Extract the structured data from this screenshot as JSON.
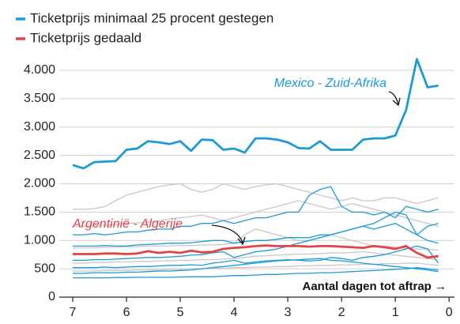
{
  "chart_data": {
    "type": "line",
    "legend": [
      {
        "label": "Ticketprijs minimaal 25 procent gestegen",
        "color": "#1a9ad6"
      },
      {
        "label": "Ticketprijs gedaald",
        "color": "#e0434b"
      }
    ],
    "annotations": [
      {
        "text": "Mexico - Zuid-Afrika",
        "color": "#1a9ad6"
      },
      {
        "text": "Argentinië - Algerije",
        "color": "#e0434b"
      },
      {
        "text": "Aantal dagen tot aftrap →",
        "color": "#111111"
      }
    ],
    "x": [
      7.0,
      6.8,
      6.6,
      6.4,
      6.2,
      6.0,
      5.8,
      5.6,
      5.4,
      5.2,
      5.0,
      4.8,
      4.6,
      4.4,
      4.2,
      4.0,
      3.8,
      3.6,
      3.4,
      3.2,
      3.0,
      2.8,
      2.6,
      2.4,
      2.2,
      2.0,
      1.8,
      1.6,
      1.4,
      1.2,
      1.0,
      0.8,
      0.6,
      0.4,
      0.2
    ],
    "xlim": [
      7.25,
      -0.1
    ],
    "xticks": [
      7,
      6,
      5,
      4,
      3,
      2,
      1,
      0
    ],
    "ylim": [
      0,
      4300
    ],
    "yticks": [
      0,
      500,
      {
        "value": 1000,
        "label": "1.000"
      },
      {
        "value": 1500,
        "label": "1.500"
      },
      {
        "value": 2000,
        "label": "2.000"
      },
      {
        "value": 2500,
        "label": "2.500"
      },
      {
        "value": 3000,
        "label": "3.000"
      },
      {
        "value": 3500,
        "label": "3.500"
      },
      {
        "value": 4000,
        "label": "4.000"
      }
    ],
    "grid": true,
    "series": [
      {
        "color": "#c8c8c8",
        "values": [
          1550,
          1550,
          1560,
          1600,
          1700,
          1800,
          1850,
          1900,
          1950,
          1980,
          2000,
          1900,
          1850,
          1900,
          2000,
          1950,
          1900,
          1950,
          1980,
          2000,
          1950,
          1900,
          1850,
          1800,
          1750,
          1700,
          1750,
          1700,
          1700,
          1750,
          1750,
          1700,
          1650,
          1700,
          1750
        ]
      },
      {
        "color": "#c8c8c8",
        "values": [
          1250,
          1250,
          1260,
          1270,
          1280,
          1300,
          1310,
          1320,
          1350,
          1380,
          1400,
          1420,
          1450,
          1400,
          1350,
          1400,
          1450,
          1500,
          1550,
          1600,
          1650,
          1700,
          1650,
          1600,
          1550,
          1600,
          1650,
          1600,
          1550,
          1500,
          1450,
          1400,
          1350,
          1300,
          1250
        ]
      },
      {
        "color": "#c8c8c8",
        "values": [
          870,
          870,
          870,
          880,
          880,
          890,
          890,
          900,
          900,
          900,
          910,
          910,
          920,
          920,
          930,
          950,
          1100,
          1200,
          1150,
          1100,
          1050,
          1000,
          1000,
          1050,
          1100,
          1050,
          1000,
          950,
          900,
          900,
          880,
          860,
          850,
          840,
          830
        ]
      },
      {
        "color": "#c8c8c8",
        "values": [
          600,
          600,
          610,
          610,
          620,
          620,
          630,
          630,
          640,
          640,
          650,
          650,
          660,
          660,
          670,
          680,
          700,
          720,
          730,
          740,
          750,
          760,
          760,
          770,
          780,
          780,
          790,
          800,
          780,
          760,
          740,
          720,
          700,
          680,
          660
        ]
      },
      {
        "color": "#c8c8c8",
        "values": [
          460,
          460,
          460,
          470,
          470,
          470,
          480,
          480,
          480,
          490,
          490,
          500,
          500,
          510,
          510,
          520,
          520,
          530,
          530,
          540,
          540,
          550,
          550,
          560,
          560,
          570,
          570,
          580,
          580,
          590,
          590,
          600,
          600,
          580,
          560
        ]
      },
      {
        "color": "#1a9ad6",
        "values": [
          1100,
          1100,
          1120,
          1100,
          1120,
          1150,
          1150,
          1180,
          1200,
          1200,
          1250,
          1250,
          1300,
          1300,
          1350,
          1300,
          1350,
          1400,
          1400,
          1450,
          1500,
          1500,
          1800,
          1900,
          1950,
          1600,
          1500,
          1500,
          1450,
          1500,
          1400,
          1600,
          1550,
          1500,
          1550
        ]
      },
      {
        "color": "#1a9ad6",
        "values": [
          520,
          520,
          520,
          530,
          520,
          530,
          540,
          540,
          550,
          560,
          560,
          570,
          560,
          600,
          620,
          650,
          600,
          620,
          640,
          650,
          660,
          650,
          640,
          650,
          700,
          680,
          650,
          700,
          720,
          750,
          800,
          850,
          900,
          850,
          600
        ]
      },
      {
        "color": "#1a9ad6",
        "values": [
          340,
          340,
          340,
          340,
          345,
          345,
          350,
          350,
          350,
          350,
          355,
          360,
          360,
          360,
          370,
          380,
          380,
          390,
          400,
          400,
          410,
          420,
          420,
          430,
          430,
          440,
          450,
          460,
          470,
          480,
          490,
          500,
          520,
          500,
          480
        ]
      },
      {
        "color": "#1a9ad6",
        "values": [
          650,
          650,
          660,
          660,
          670,
          680,
          690,
          700,
          700,
          710,
          720,
          740,
          750,
          780,
          800,
          700,
          750,
          800,
          820,
          850,
          900,
          950,
          1000,
          1050,
          1100,
          1150,
          1200,
          1250,
          1200,
          1250,
          1300,
          1200,
          1100,
          1250,
          1300
        ]
      },
      {
        "color": "#1a9ad6",
        "values": [
          900,
          900,
          900,
          910,
          900,
          900,
          920,
          930,
          940,
          950,
          950,
          960,
          980,
          1000,
          1000,
          950,
          980,
          1000,
          1000,
          1020,
          1050,
          1050,
          1050,
          1100,
          1100,
          1150,
          1200,
          1250,
          1300,
          1400,
          1500,
          1450,
          1100,
          1000,
          950
        ]
      },
      {
        "color": "#1a9ad6",
        "values": [
          420,
          420,
          430,
          430,
          430,
          440,
          440,
          450,
          460,
          460,
          470,
          480,
          500,
          520,
          540,
          560,
          580,
          600,
          620,
          640,
          650,
          660,
          670,
          680,
          650,
          640,
          620,
          600,
          580,
          560,
          540,
          520,
          500,
          480,
          450
        ]
      },
      {
        "color": "#e0434b",
        "highlight": true,
        "values": [
          760,
          760,
          760,
          770,
          770,
          760,
          770,
          810,
          780,
          800,
          780,
          820,
          790,
          800,
          850,
          870,
          880,
          900,
          910,
          900,
          900,
          900,
          890,
          900,
          900,
          890,
          880,
          870,
          900,
          880,
          850,
          900,
          780,
          700,
          720
        ]
      },
      {
        "color": "#1a9ad6",
        "highlight": true,
        "values": [
          2330,
          2270,
          2380,
          2390,
          2400,
          2600,
          2620,
          2750,
          2730,
          2700,
          2750,
          2580,
          2780,
          2770,
          2600,
          2620,
          2550,
          2800,
          2800,
          2780,
          2730,
          2630,
          2620,
          2750,
          2600,
          2600,
          2600,
          2780,
          2800,
          2800,
          2850,
          3300,
          4200,
          3700,
          3730
        ]
      }
    ]
  }
}
